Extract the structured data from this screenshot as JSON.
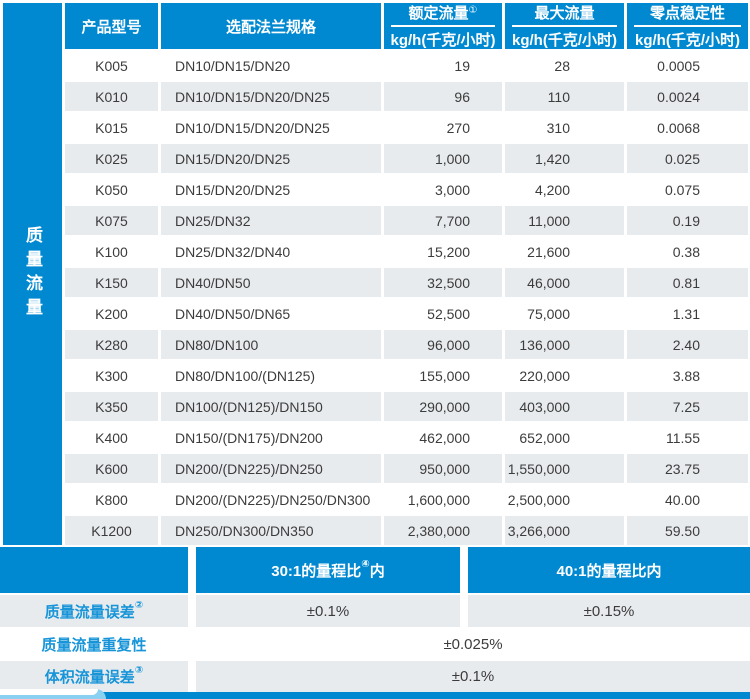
{
  "colors": {
    "blue": "#0089d1",
    "row_gray": "#e8ebee",
    "label_blue": "#1795d8",
    "light_blue": "#8ad0f0",
    "text_dark": "#3c3c3c"
  },
  "sidebar": {
    "label": "质量流量"
  },
  "table": {
    "headers": {
      "model": "产品型号",
      "flange": "选配法兰规格",
      "rated": {
        "title": "额定流量",
        "sup": "①",
        "unit": "kg/h(千克/小时)"
      },
      "max": {
        "title": "最大流量",
        "sup": "",
        "unit": "kg/h(千克/小时)"
      },
      "zero": {
        "title": "零点稳定性",
        "sup": "",
        "unit": "kg/h(千克/小时)"
      }
    },
    "rows": [
      {
        "model": "K005",
        "flange": "DN10/DN15/DN20",
        "rated": "19",
        "max": "28",
        "zero": "0.0005"
      },
      {
        "model": "K010",
        "flange": "DN10/DN15/DN20/DN25",
        "rated": "96",
        "max": "110",
        "zero": "0.0024"
      },
      {
        "model": "K015",
        "flange": "DN10/DN15/DN20/DN25",
        "rated": "270",
        "max": "310",
        "zero": "0.0068"
      },
      {
        "model": "K025",
        "flange": "DN15/DN20/DN25",
        "rated": "1,000",
        "max": "1,420",
        "zero": "0.025"
      },
      {
        "model": "K050",
        "flange": "DN15/DN20/DN25",
        "rated": "3,000",
        "max": "4,200",
        "zero": "0.075"
      },
      {
        "model": "K075",
        "flange": "DN25/DN32",
        "rated": "7,700",
        "max": "11,000",
        "zero": "0.19"
      },
      {
        "model": "K100",
        "flange": "DN25/DN32/DN40",
        "rated": "15,200",
        "max": "21,600",
        "zero": "0.38"
      },
      {
        "model": "K150",
        "flange": "DN40/DN50",
        "rated": "32,500",
        "max": "46,000",
        "zero": "0.81"
      },
      {
        "model": "K200",
        "flange": "DN40/DN50/DN65",
        "rated": "52,500",
        "max": "75,000",
        "zero": "1.31"
      },
      {
        "model": "K280",
        "flange": "DN80/DN100",
        "rated": "96,000",
        "max": "136,000",
        "zero": "2.40"
      },
      {
        "model": "K300",
        "flange": "DN80/DN100/(DN125)",
        "rated": "155,000",
        "max": "220,000",
        "zero": "3.88"
      },
      {
        "model": "K350",
        "flange": "DN100/(DN125)/DN150",
        "rated": "290,000",
        "max": "403,000",
        "zero": "7.25"
      },
      {
        "model": "K400",
        "flange": "DN150/(DN175)/DN200",
        "rated": "462,000",
        "max": "652,000",
        "zero": "11.55"
      },
      {
        "model": "K600",
        "flange": "DN200/(DN225)/DN250",
        "rated": "950,000",
        "max": "1,550,000",
        "zero": "23.75"
      },
      {
        "model": "K800",
        "flange": "DN200/(DN225)/DN250/DN300",
        "rated": "1,600,000",
        "max": "2,500,000",
        "zero": "40.00"
      },
      {
        "model": "K1200",
        "flange": "DN250/DN300/DN350",
        "rated": "2,380,000",
        "max": "3,266,000",
        "zero": "59.50"
      }
    ]
  },
  "bottom": {
    "scope30": {
      "prefix": "30:1的量程比",
      "sup": "④",
      "suffix": "内"
    },
    "scope40": {
      "label": "40:1的量程比内"
    },
    "mass_error": {
      "label": "质量流量误差",
      "sup": "②",
      "val30": "±0.1%",
      "val40": "±0.15%"
    },
    "repeatability": {
      "label": "质量流量重复性",
      "value": "±0.025%"
    },
    "volume_error": {
      "label": "体积流量误差",
      "sup": "③",
      "value": "±0.1%"
    }
  }
}
